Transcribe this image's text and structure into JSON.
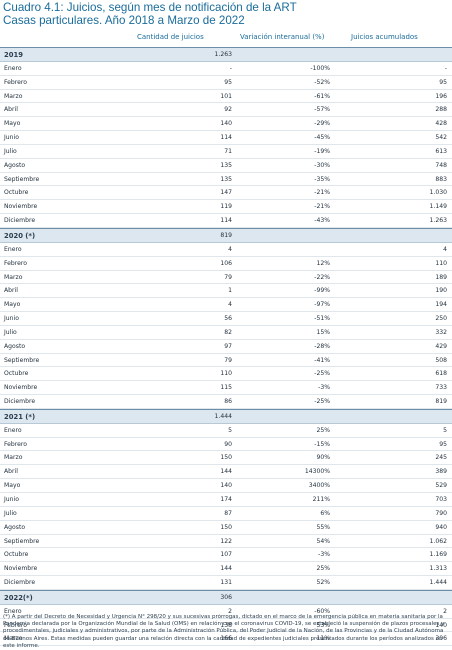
{
  "title_line1": "Cuadro 4.1: Juicios, según mes de notificación de la ART",
  "title_line2": "Casas particulares. Año 2018 a Marzo de 2022",
  "headers": {
    "col1": "Cantidad de juicios",
    "col2": "Variación interanual (%)",
    "col3": "Juicios acumulados"
  },
  "sections": [
    {
      "year": "2019",
      "total": "1.263",
      "rows": [
        [
          "Enero",
          "-",
          "-100%",
          "-"
        ],
        [
          "Febrero",
          "95",
          "-52%",
          "95"
        ],
        [
          "Marzo",
          "101",
          "-61%",
          "196"
        ],
        [
          "Abril",
          "92",
          "-57%",
          "288"
        ],
        [
          "Mayo",
          "140",
          "-29%",
          "428"
        ],
        [
          "Junio",
          "114",
          "-45%",
          "542"
        ],
        [
          "Julio",
          "71",
          "-19%",
          "613"
        ],
        [
          "Agosto",
          "135",
          "-30%",
          "748"
        ],
        [
          "Septiembre",
          "135",
          "-35%",
          "883"
        ],
        [
          "Octubre",
          "147",
          "-21%",
          "1.030"
        ],
        [
          "Noviembre",
          "119",
          "-21%",
          "1.149"
        ],
        [
          "Diciembre",
          "114",
          "-43%",
          "1.263"
        ]
      ]
    },
    {
      "year": "2020 (*)",
      "total": "819",
      "rows": [
        [
          "Enero",
          "4",
          "",
          "4"
        ],
        [
          "Febrero",
          "106",
          "12%",
          "110"
        ],
        [
          "Marzo",
          "79",
          "-22%",
          "189"
        ],
        [
          "Abril",
          "1",
          "-99%",
          "190"
        ],
        [
          "Mayo",
          "4",
          "-97%",
          "194"
        ],
        [
          "Junio",
          "56",
          "-51%",
          "250"
        ],
        [
          "Julio",
          "82",
          "15%",
          "332"
        ],
        [
          "Agosto",
          "97",
          "-28%",
          "429"
        ],
        [
          "Septiembre",
          "79",
          "-41%",
          "508"
        ],
        [
          "Octubre",
          "110",
          "-25%",
          "618"
        ],
        [
          "Noviembre",
          "115",
          "-3%",
          "733"
        ],
        [
          "Diciembre",
          "86",
          "-25%",
          "819"
        ]
      ]
    },
    {
      "year": "2021 (*)",
      "total": "1.444",
      "rows": [
        [
          "Enero",
          "5",
          "25%",
          "5"
        ],
        [
          "Febrero",
          "90",
          "-15%",
          "95"
        ],
        [
          "Marzo",
          "150",
          "90%",
          "245"
        ],
        [
          "Abril",
          "144",
          "14300%",
          "389"
        ],
        [
          "Mayo",
          "140",
          "3400%",
          "529"
        ],
        [
          "Junio",
          "174",
          "211%",
          "703"
        ],
        [
          "Julio",
          "87",
          "6%",
          "790"
        ],
        [
          "Agosto",
          "150",
          "55%",
          "940"
        ],
        [
          "Septiembre",
          "122",
          "54%",
          "1.062"
        ],
        [
          "Octubre",
          "107",
          "-3%",
          "1.169"
        ],
        [
          "Noviembre",
          "144",
          "25%",
          "1.313"
        ],
        [
          "Diciembre",
          "131",
          "52%",
          "1.444"
        ]
      ]
    },
    {
      "year": "2022(*)",
      "total": "306",
      "rows": [
        [
          "Enero",
          "2",
          "-60%",
          "2"
        ],
        [
          "Febrero",
          "138",
          "53%",
          "140"
        ],
        [
          "Marzo",
          "166",
          "11%",
          "306"
        ]
      ]
    }
  ],
  "footnote": "(*) A partir del Decreto de Necesidad y Urgencia N° 298/20 y sus sucesivas prórrogas, dictado en el marco de la emergencia pública en materia sanitaria por la Pandemia declarada por la Organización Mundial de la Salud (OMS) en relación con el coronavirus COVID-19, se estableció la suspensión de plazos procesales y procedimentales, judiciales y administrativos, por parte de la Administración Pública, del Poder Judicial de la Nación, de las Provincias y de la Ciudad Autónoma de Buenos Aires. Estas medidas pueden guardar una relación directa con la cantidad de expedientes judiciales presentados durante los períodos analizados en este informe."
}
